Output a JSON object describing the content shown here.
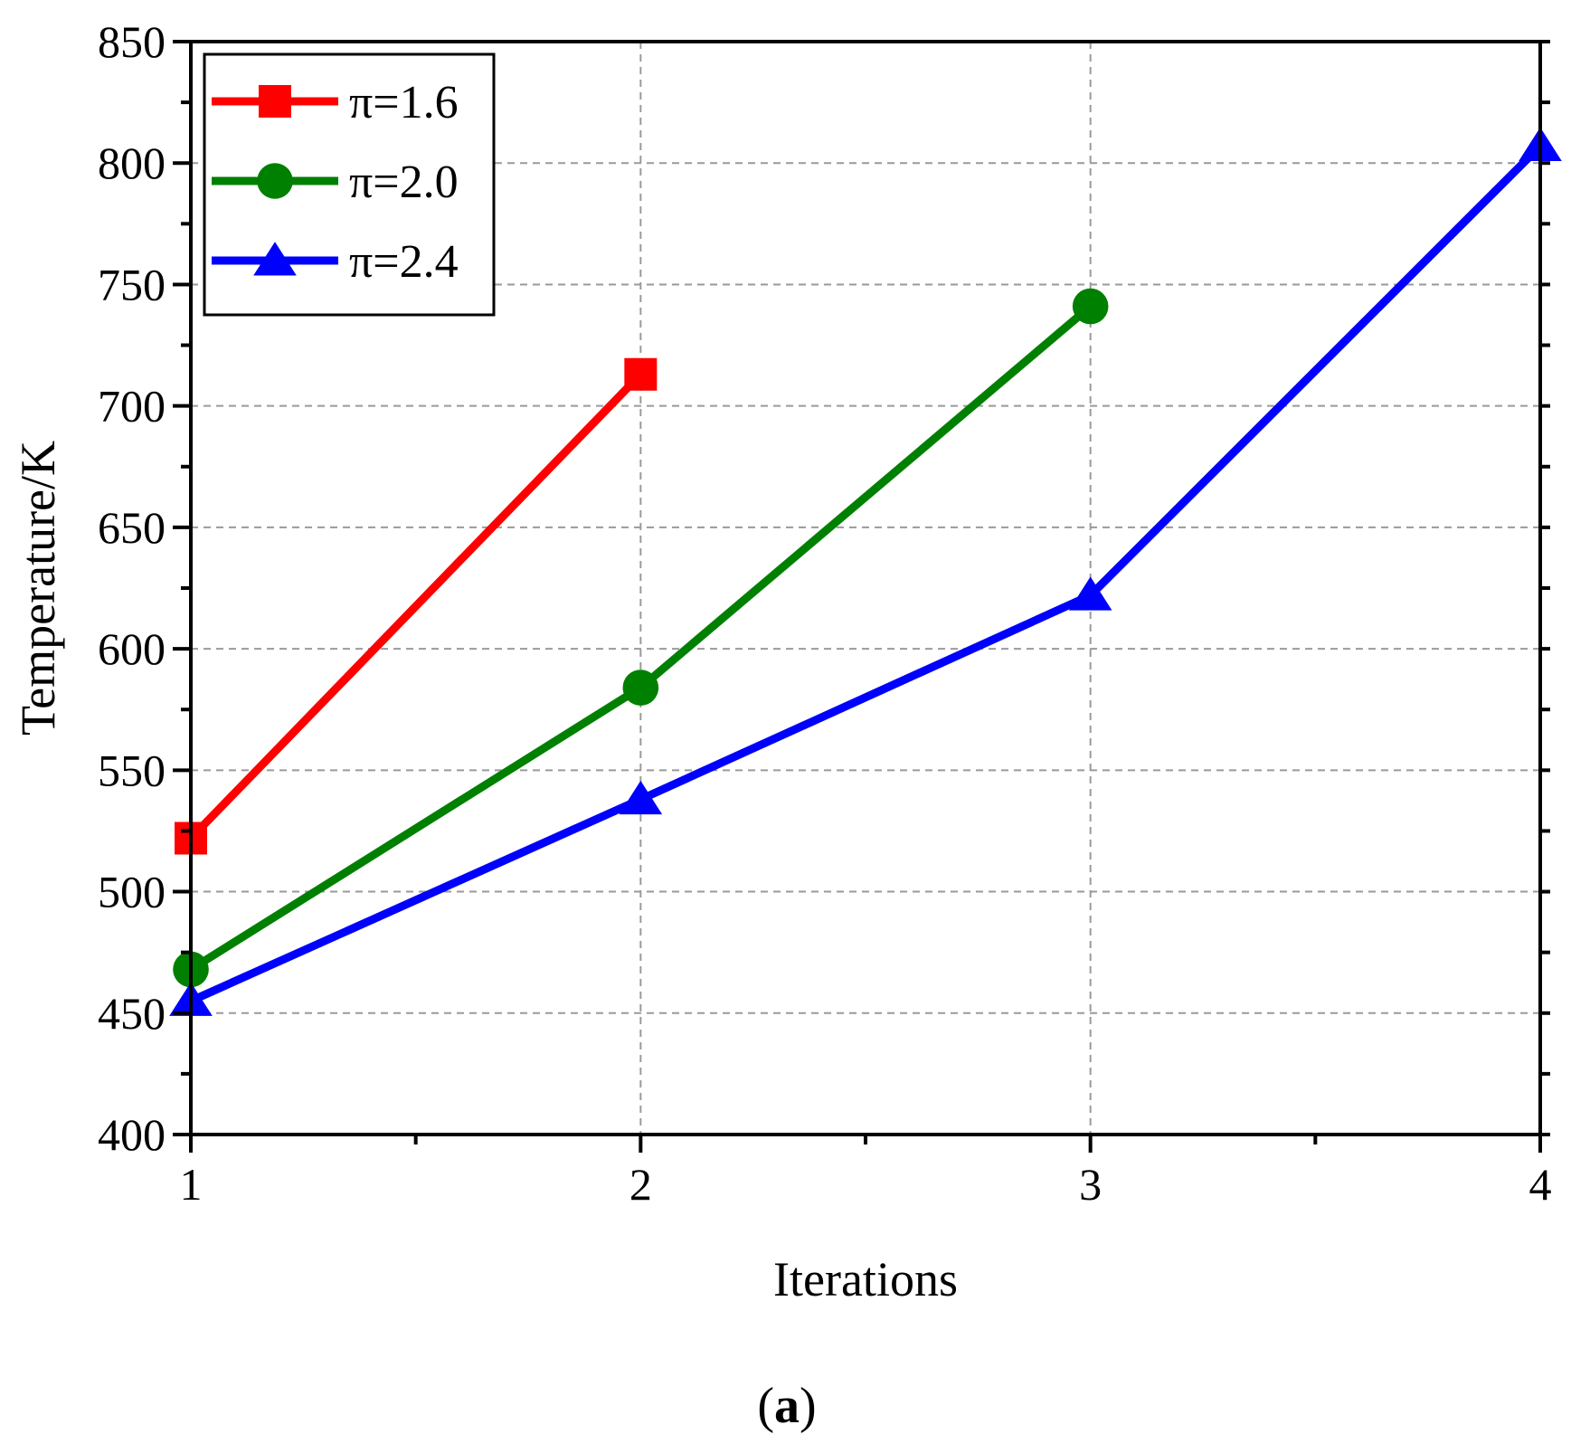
{
  "chart_data": {
    "type": "line",
    "xlabel": "Iterations",
    "ylabel": "Temperature/K",
    "xlim": [
      1,
      4
    ],
    "ylim": [
      400,
      850
    ],
    "xticks": [
      1,
      2,
      3,
      4
    ],
    "yticks": [
      400,
      450,
      500,
      550,
      600,
      650,
      700,
      750,
      800,
      850
    ],
    "grid": true,
    "legend_position": "top-left",
    "series": [
      {
        "name": "π=1.6",
        "color": "#ff0000",
        "marker": "square",
        "x": [
          1,
          2
        ],
        "y": [
          522,
          713
        ]
      },
      {
        "name": "π=2.0",
        "color": "#008000",
        "marker": "circle",
        "x": [
          1,
          2,
          3
        ],
        "y": [
          468,
          584,
          741
        ]
      },
      {
        "name": "π=2.4",
        "color": "#0000ff",
        "marker": "triangle",
        "x": [
          1,
          2,
          3,
          4
        ],
        "y": [
          455,
          538,
          622,
          807
        ]
      }
    ]
  },
  "caption": {
    "open": "(",
    "letter": "a",
    "close": ")"
  }
}
